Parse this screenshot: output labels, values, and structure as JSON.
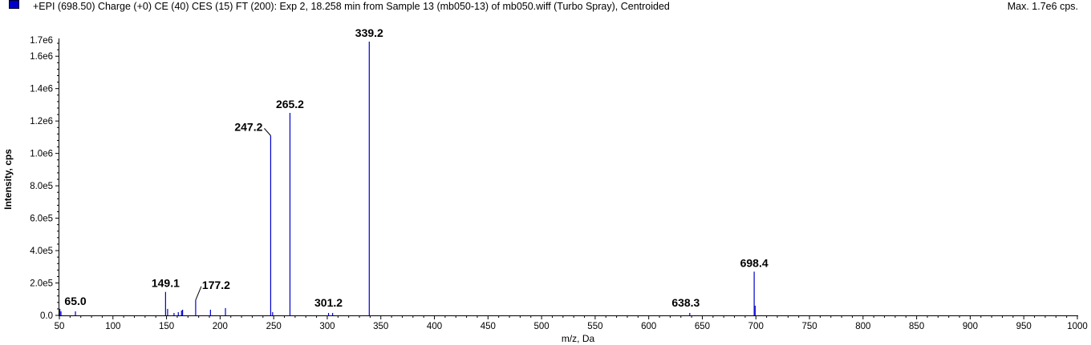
{
  "header": {
    "title": "+EPI (698.50) Charge (+0) CE (40) CES (15) FT (200): Exp 2, 18.258 min from Sample 13 (mb050-13) of mb050.wiff (Turbo Spray), Centroided",
    "max_label": "Max. 1.7e6 cps."
  },
  "colors": {
    "series": "#0000cc",
    "axis": "#000000"
  },
  "chart_data": {
    "type": "bar",
    "title": "+EPI (698.50) Charge (+0) CE (40) CES (15) FT (200): Exp 2, 18.258 min from Sample 13 (mb050-13) of mb050.wiff (Turbo Spray), Centroided",
    "xlabel": "m/z, Da",
    "ylabel": "Intensity, cps",
    "xlim": [
      50,
      1000
    ],
    "ylim": [
      0,
      1700000
    ],
    "grid": false,
    "x_ticks": [
      {
        "v": 50,
        "label": "50"
      },
      {
        "v": 100,
        "label": "100"
      },
      {
        "v": 150,
        "label": "150"
      },
      {
        "v": 200,
        "label": "200"
      },
      {
        "v": 250,
        "label": "250"
      },
      {
        "v": 300,
        "label": "300"
      },
      {
        "v": 350,
        "label": "350"
      },
      {
        "v": 400,
        "label": "400"
      },
      {
        "v": 450,
        "label": "450"
      },
      {
        "v": 500,
        "label": "500"
      },
      {
        "v": 550,
        "label": "550"
      },
      {
        "v": 600,
        "label": "600"
      },
      {
        "v": 650,
        "label": "650"
      },
      {
        "v": 700,
        "label": "700"
      },
      {
        "v": 750,
        "label": "750"
      },
      {
        "v": 800,
        "label": "800"
      },
      {
        "v": 850,
        "label": "850"
      },
      {
        "v": 900,
        "label": "900"
      },
      {
        "v": 950,
        "label": "950"
      },
      {
        "v": 1000,
        "label": "1000"
      }
    ],
    "y_ticks": [
      {
        "v": 0,
        "label": "0.0"
      },
      {
        "v": 200000,
        "label": "2.0e5"
      },
      {
        "v": 400000,
        "label": "4.0e5"
      },
      {
        "v": 600000,
        "label": "6.0e5"
      },
      {
        "v": 800000,
        "label": "8.0e5"
      },
      {
        "v": 1000000,
        "label": "1.0e6"
      },
      {
        "v": 1200000,
        "label": "1.2e6"
      },
      {
        "v": 1400000,
        "label": "1.4e6"
      },
      {
        "v": 1600000,
        "label": "1.6e6"
      },
      {
        "v": 1700000,
        "label": "1.7e6"
      }
    ],
    "peaks": [
      {
        "x": 50.5,
        "y": 40000
      },
      {
        "x": 51.5,
        "y": 25000
      },
      {
        "x": 65.0,
        "y": 25000,
        "label": "65.0"
      },
      {
        "x": 149.1,
        "y": 145000,
        "label": "149.1"
      },
      {
        "x": 151.0,
        "y": 40000
      },
      {
        "x": 157.0,
        "y": 15000
      },
      {
        "x": 161.0,
        "y": 20000
      },
      {
        "x": 164.0,
        "y": 30000
      },
      {
        "x": 165.0,
        "y": 35000
      },
      {
        "x": 177.2,
        "y": 95000,
        "label": "177.2"
      },
      {
        "x": 191.0,
        "y": 35000
      },
      {
        "x": 205.0,
        "y": 45000
      },
      {
        "x": 247.2,
        "y": 1110000,
        "label": "247.2"
      },
      {
        "x": 249.0,
        "y": 20000
      },
      {
        "x": 265.2,
        "y": 1250000,
        "label": "265.2"
      },
      {
        "x": 301.2,
        "y": 15000,
        "label": "301.2"
      },
      {
        "x": 305.0,
        "y": 15000
      },
      {
        "x": 339.2,
        "y": 1690000,
        "label": "339.2"
      },
      {
        "x": 638.3,
        "y": 15000,
        "label": "638.3"
      },
      {
        "x": 698.4,
        "y": 270000,
        "label": "698.4"
      },
      {
        "x": 699.3,
        "y": 60000
      }
    ],
    "peak_labels": [
      "65.0",
      "149.1",
      "177.2",
      "247.2",
      "265.2",
      "301.2",
      "339.2",
      "638.3",
      "698.4"
    ]
  }
}
